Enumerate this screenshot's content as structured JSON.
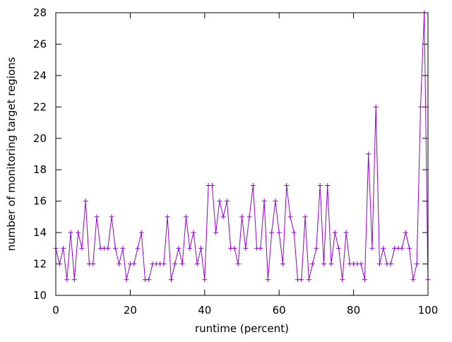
{
  "chart_data": {
    "type": "line",
    "title": "",
    "xlabel": "runtime (percent)",
    "ylabel": "number of monitoring target regions",
    "xlim": [
      0,
      100
    ],
    "ylim": [
      10,
      28
    ],
    "x_ticks": [
      "0",
      "20",
      "40",
      "60",
      "80",
      "100"
    ],
    "y_ticks": [
      "10",
      "12",
      "14",
      "16",
      "18",
      "20",
      "22",
      "24",
      "26",
      "28"
    ],
    "grid": false,
    "legend": "none",
    "marker": "plus",
    "series": [
      {
        "color": "#9400d3",
        "x": [
          0,
          1,
          2,
          3,
          4,
          5,
          6,
          7,
          8,
          9,
          10,
          11,
          12,
          13,
          14,
          15,
          16,
          17,
          18,
          19,
          20,
          21,
          22,
          23,
          24,
          25,
          26,
          27,
          28,
          29,
          30,
          31,
          32,
          33,
          34,
          35,
          36,
          37,
          38,
          39,
          40,
          41,
          42,
          43,
          44,
          45,
          46,
          47,
          48,
          49,
          50,
          51,
          52,
          53,
          54,
          55,
          56,
          57,
          58,
          59,
          60,
          61,
          62,
          63,
          64,
          65,
          66,
          67,
          68,
          69,
          70,
          71,
          72,
          73,
          74,
          75,
          76,
          77,
          78,
          79,
          80,
          81,
          82,
          83,
          84,
          85,
          86,
          87,
          88,
          89,
          90,
          91,
          92,
          93,
          94,
          95,
          96,
          97,
          98,
          99,
          100
        ],
        "y": [
          13,
          12,
          13,
          11,
          14,
          11,
          14,
          13,
          16,
          12,
          12,
          15,
          13,
          13,
          13,
          15,
          13,
          12,
          13,
          11,
          12,
          12,
          13,
          14,
          11,
          11,
          12,
          12,
          12,
          12,
          15,
          11,
          12,
          13,
          12,
          15,
          13,
          14,
          12,
          13,
          11,
          17,
          17,
          14,
          16,
          15,
          16,
          13,
          13,
          12,
          15,
          13,
          15,
          17,
          13,
          13,
          16,
          11,
          14,
          16,
          14,
          12,
          17,
          15,
          14,
          11,
          11,
          15,
          11,
          12,
          13,
          17,
          12,
          17,
          12,
          14,
          13,
          11,
          14,
          12,
          12,
          12,
          12,
          11,
          19,
          13,
          22,
          12,
          13,
          12,
          12,
          13,
          13,
          13,
          14,
          13,
          11,
          12,
          22,
          28,
          11
        ]
      }
    ]
  }
}
